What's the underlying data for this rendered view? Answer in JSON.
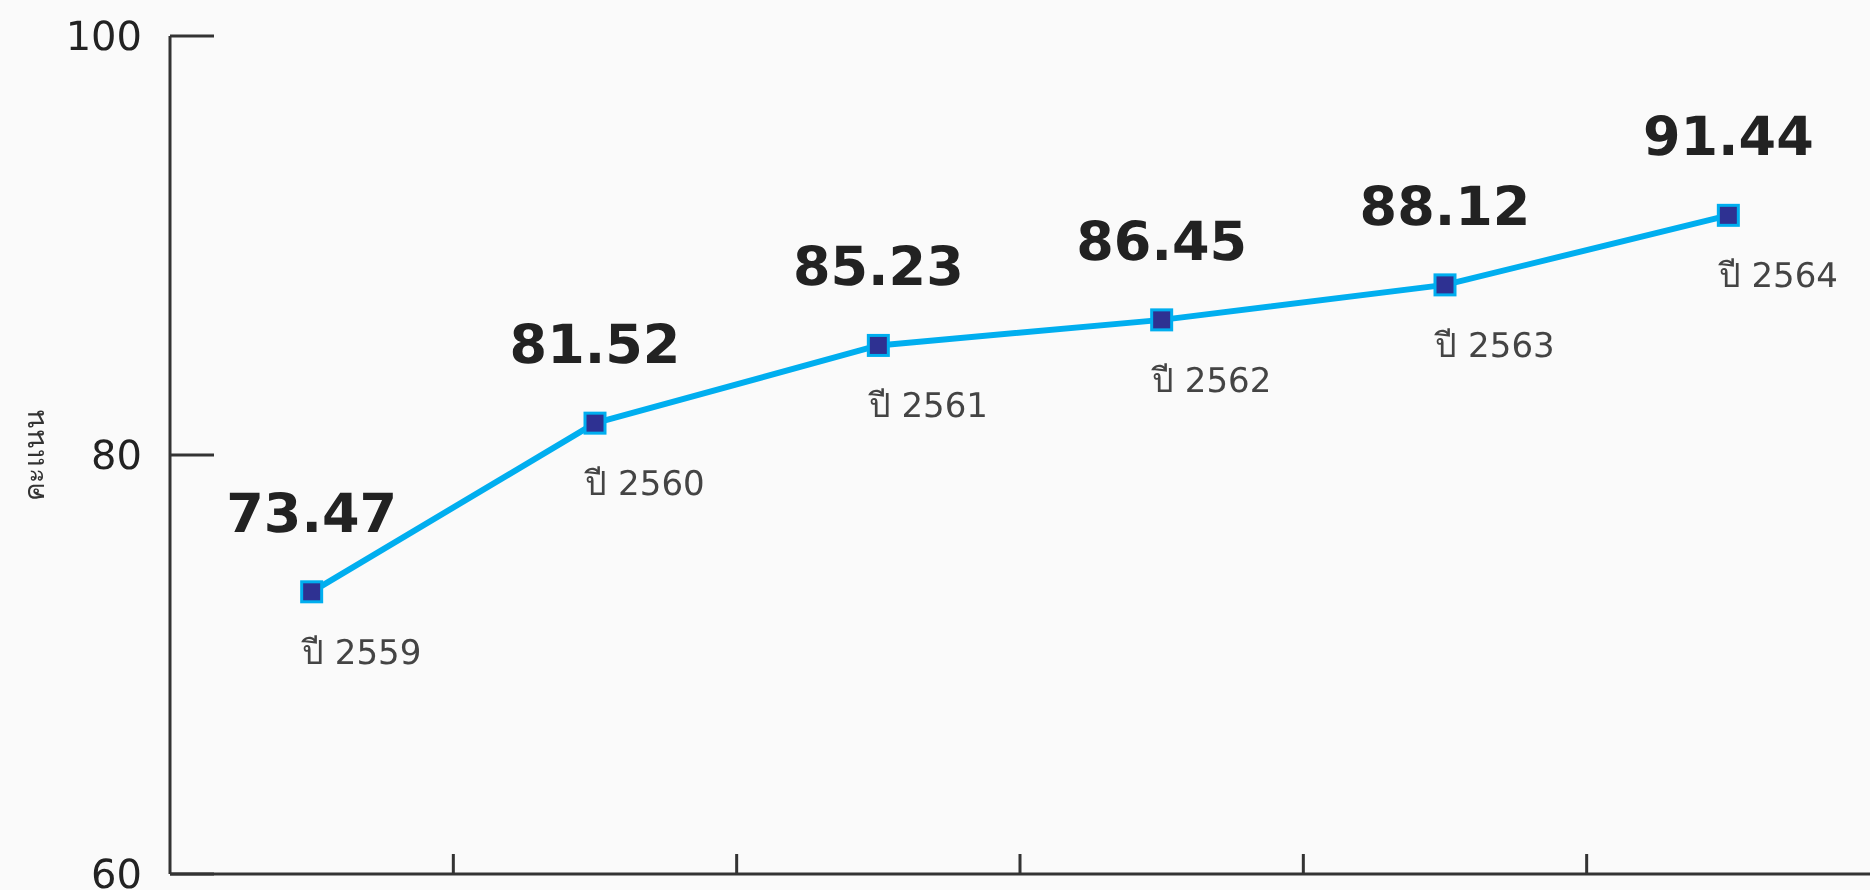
{
  "chart_data": {
    "type": "line",
    "ylabel": "คะแนน",
    "categories": [
      "ปี 2559",
      "ปี 2560",
      "ปี 2561",
      "ปี 2562",
      "ปี 2563",
      "ปี 2564"
    ],
    "series": [
      {
        "color": "#00aeef",
        "values": [
          73.47,
          81.52,
          85.23,
          86.45,
          88.12,
          91.44
        ]
      }
    ],
    "ylim": [
      60,
      100
    ],
    "yticks": [
      60,
      80,
      100
    ],
    "marker": "square",
    "line_style": "solid",
    "data_labels": true,
    "grid": false
  }
}
